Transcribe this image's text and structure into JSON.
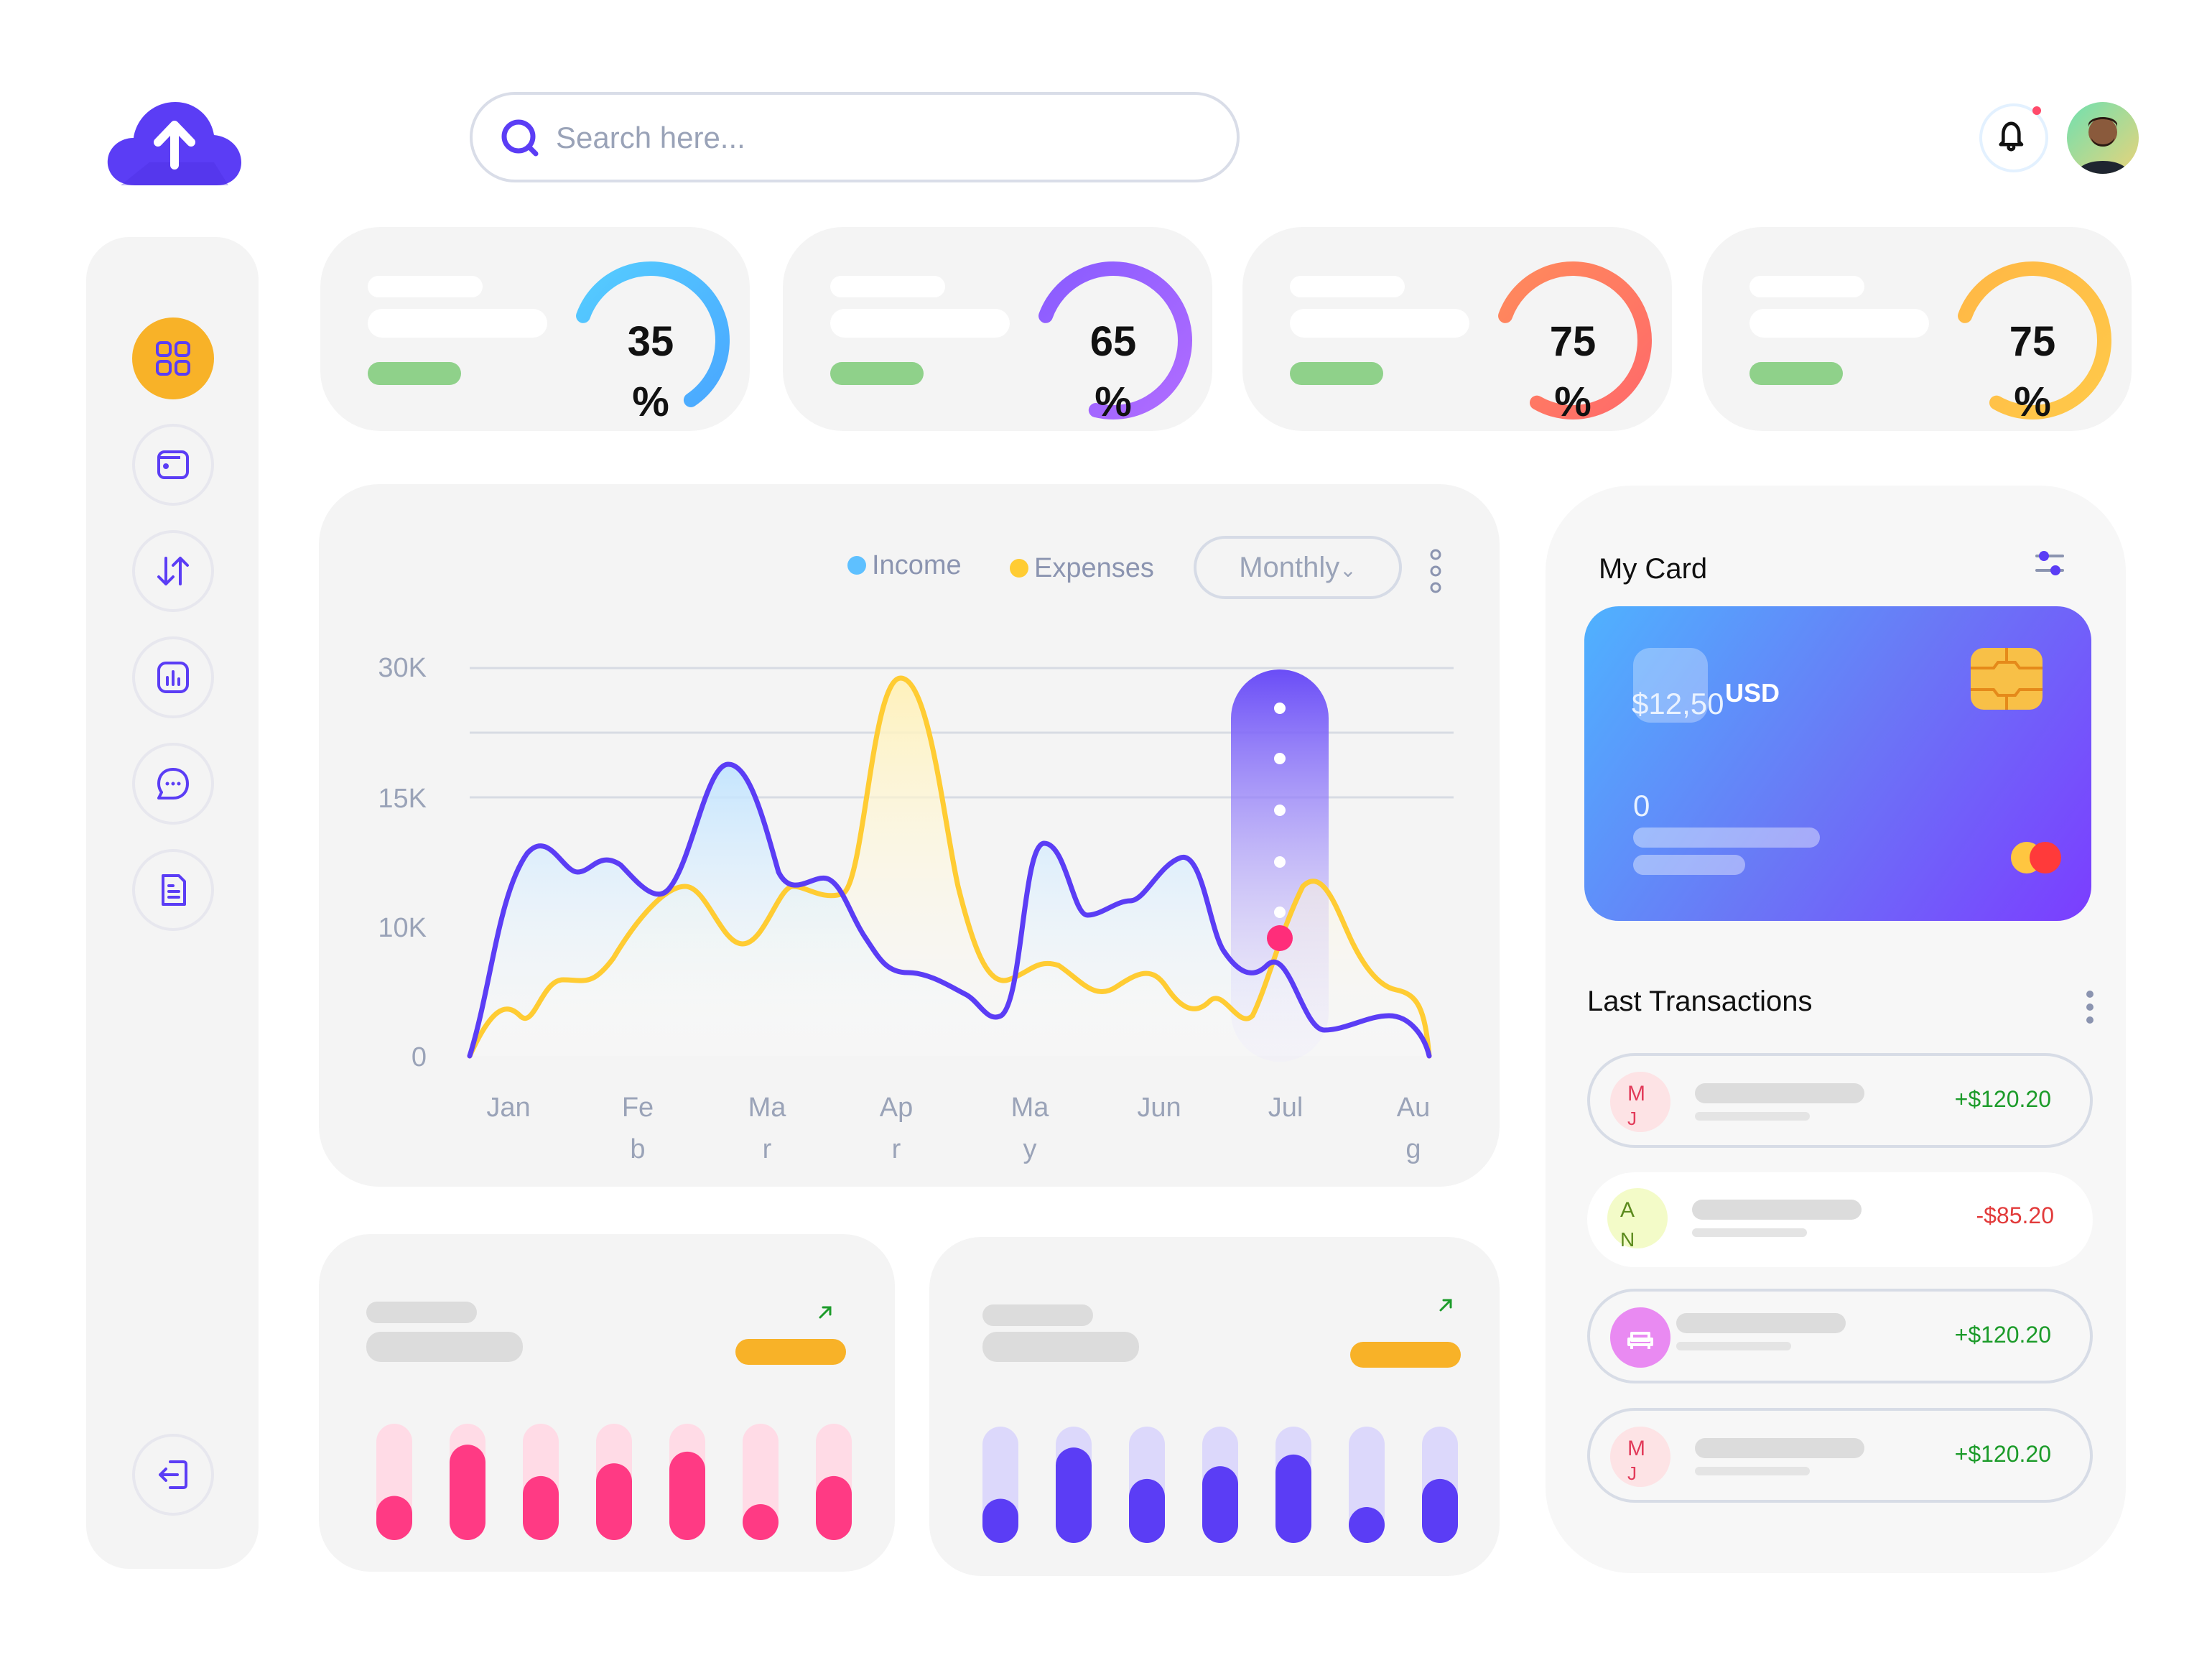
{
  "search": {
    "placeholder": "Search here..."
  },
  "icons": {
    "logo": "cloud-upload-icon",
    "search": "search-icon",
    "bell": "bell-icon",
    "nav": [
      "dashboard-grid-icon",
      "wallet-icon",
      "transfer-arrows-icon",
      "report-chart-icon",
      "chat-icon",
      "document-icon",
      "logout-icon"
    ]
  },
  "colors": {
    "accent": "#5b3df5",
    "active_nav": "#f8b228",
    "income": "#5b3df5",
    "expenses": "#ffcc33",
    "pink_bars": "#ff3a84",
    "purple_bars": "#5b3df5"
  },
  "stats": [
    {
      "value": "35",
      "unit": "%",
      "percent": 35,
      "color": "#55ccff",
      "color2": "#4aa8ff"
    },
    {
      "value": "65",
      "unit": "%",
      "percent": 65,
      "color": "#8a5cff",
      "color2": "#b06cff"
    },
    {
      "value": "75",
      "unit": "%",
      "percent": 75,
      "color": "#ff8a5c",
      "color2": "#ff6a6a"
    },
    {
      "value": "75",
      "unit": "%",
      "percent": 75,
      "color": "#ffb845",
      "color2": "#ffc94a"
    }
  ],
  "chart": {
    "legend": {
      "income": "Income",
      "expenses": "Expenses"
    },
    "period": "Monthly",
    "period_chevron": "⌄"
  },
  "chart_data": {
    "type": "line",
    "categories": [
      "Jan",
      "Fe b",
      "Ma r",
      "Ap r",
      "Ma y",
      "Jun",
      "Jul",
      "Au g"
    ],
    "y_ticks": [
      "30K",
      "15K",
      "10K",
      "0"
    ],
    "series": [
      {
        "name": "Income",
        "color": "#5b3df5"
      },
      {
        "name": "Expenses",
        "color": "#ffcc33"
      }
    ],
    "highlight_month": "Jul"
  },
  "my_card": {
    "title": "My Card",
    "amount": "$12,50",
    "currency": "USD",
    "number": "0"
  },
  "transactions": {
    "title": "Last Transactions",
    "items": [
      {
        "initials": "M J",
        "initial1": "M",
        "initial2": "J",
        "amount": "+$120.20",
        "type": "pos",
        "avatar_color": "#fde3e5",
        "text_color": "#e23b5a"
      },
      {
        "initials": "A N",
        "initial1": "A",
        "initial2": "N",
        "amount": "-$85.20",
        "type": "neg",
        "avatar_color": "#f3fbc8",
        "text_color": "#5b8a1d"
      },
      {
        "initials": "",
        "initial1": "",
        "initial2": "",
        "amount": "+$120.20",
        "type": "pos",
        "avatar_color": "#e98af2",
        "text_color": "#fff"
      },
      {
        "initials": "M J",
        "initial1": "M",
        "initial2": "J",
        "amount": "+$120.20",
        "type": "pos",
        "avatar_color": "#fde3e5",
        "text_color": "#e23b5a"
      }
    ]
  },
  "mini_charts": [
    {
      "color": "#ff3a84",
      "track": "#ffdbe6",
      "levels": [
        0.38,
        0.82,
        0.55,
        0.66,
        0.76,
        0.3,
        0.55
      ]
    },
    {
      "color": "#5b3df5",
      "track": "#dcd8fb",
      "levels": [
        0.38,
        0.82,
        0.55,
        0.66,
        0.76,
        0.3,
        0.55
      ]
    }
  ]
}
